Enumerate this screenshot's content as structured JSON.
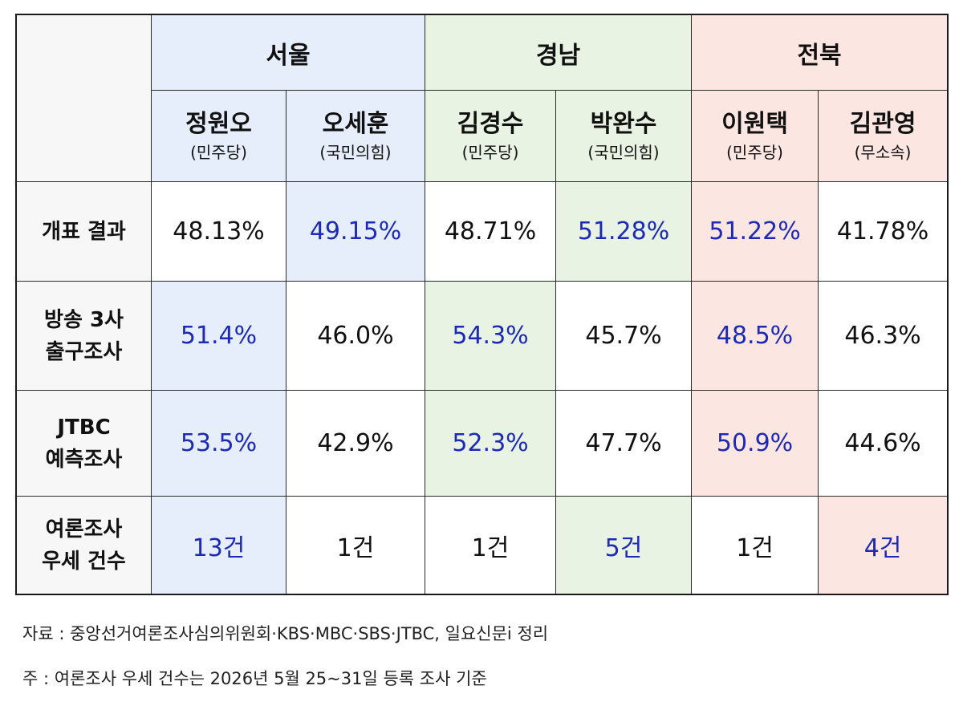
{
  "regions": [
    {
      "name": "서울"
    },
    {
      "name": "경남"
    },
    {
      "name": "전북"
    }
  ],
  "candidates": [
    {
      "name": "정원오",
      "party": "(민주당)"
    },
    {
      "name": "오세훈",
      "party": "(국민의힘)"
    },
    {
      "name": "김경수",
      "party": "(민주당)"
    },
    {
      "name": "박완수",
      "party": "(국민의힘)"
    },
    {
      "name": "이원택",
      "party": "(민주당)"
    },
    {
      "name": "김관영",
      "party": "(무소속)"
    }
  ],
  "rows": [
    {
      "label": [
        "개표 결과"
      ],
      "values": [
        "48.13%",
        "49.15%",
        "48.71%",
        "51.28%",
        "51.22%",
        "41.78%"
      ]
    },
    {
      "label": [
        "방송 3사",
        "출구조사"
      ],
      "values": [
        "51.4%",
        "46.0%",
        "54.3%",
        "45.7%",
        "48.5%",
        "46.3%"
      ]
    },
    {
      "label": [
        "JTBC",
        "예측조사"
      ],
      "values": [
        "53.5%",
        "42.9%",
        "52.3%",
        "47.7%",
        "50.9%",
        "44.6%"
      ]
    },
    {
      "label": [
        "여론조사",
        "우세 건수"
      ],
      "values": [
        "13건",
        "1건",
        "1건",
        "5건",
        "1건",
        "4건"
      ]
    }
  ],
  "notes": {
    "source": "자료 : 중앙선거여론조사심의위원회·KBS·MBC·SBS·JTBC, 일요신문i 정리",
    "footnote": "주 : 여론조사 우세 건수는 2026년 5월 25~31일 등록 조사 기준"
  },
  "colors": {
    "winner_text": "#1c2ab4",
    "seoul_bg": "#e7eefb",
    "gyeongnam_bg": "#e8f3e3",
    "jeonbuk_bg": "#fbe6e2"
  }
}
